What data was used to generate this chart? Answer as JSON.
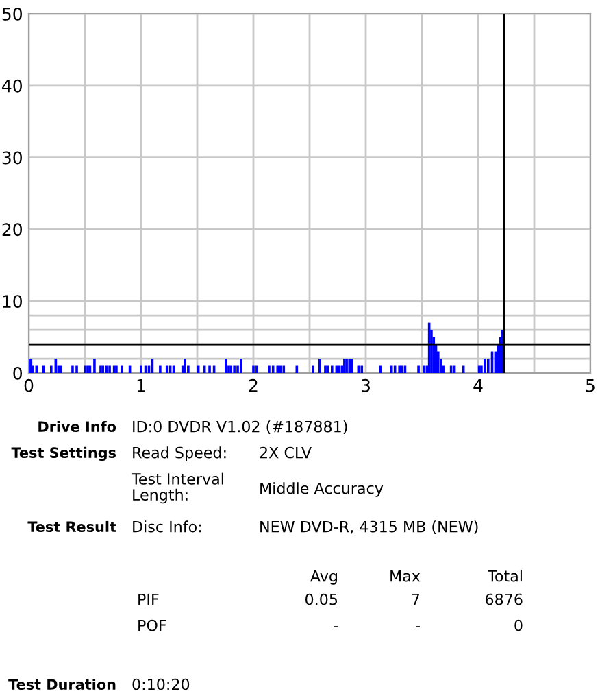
{
  "chart_data": {
    "type": "bar",
    "x": [
      0.0,
      0.02,
      0.037,
      0.069,
      0.13,
      0.2,
      0.24,
      0.264,
      0.285,
      0.39,
      0.427,
      0.504,
      0.525,
      0.545,
      0.585,
      0.64,
      0.66,
      0.69,
      0.72,
      0.76,
      0.78,
      0.83,
      0.9,
      1.0,
      1.04,
      1.07,
      1.1,
      1.17,
      1.23,
      1.26,
      1.29,
      1.37,
      1.39,
      1.42,
      1.51,
      1.565,
      1.61,
      1.65,
      1.755,
      1.78,
      1.8,
      1.83,
      1.86,
      1.89,
      2.0,
      2.03,
      2.14,
      2.175,
      2.215,
      2.24,
      2.27,
      2.386,
      2.53,
      2.59,
      2.64,
      2.66,
      2.7,
      2.74,
      2.765,
      2.79,
      2.81,
      2.83,
      2.855,
      2.875,
      2.935,
      2.965,
      3.13,
      3.23,
      3.26,
      3.3,
      3.32,
      3.35,
      3.47,
      3.52,
      3.545,
      3.565,
      3.585,
      3.605,
      3.625,
      3.645,
      3.67,
      3.69,
      3.76,
      3.79,
      3.87,
      4.01,
      4.03,
      4.06,
      4.09,
      4.125,
      4.155,
      4.18,
      4.2,
      4.215
    ],
    "values": [
      2,
      2,
      1,
      1,
      1,
      1,
      2,
      1,
      1,
      1,
      1,
      1,
      1,
      1,
      2,
      1,
      1,
      1,
      1,
      1,
      1,
      1,
      1,
      1,
      1,
      1,
      2,
      1,
      1,
      1,
      1,
      1,
      2,
      1,
      1,
      1,
      1,
      1,
      2,
      1,
      1,
      1,
      1,
      2,
      1,
      1,
      1,
      1,
      1,
      1,
      1,
      1,
      1,
      2,
      1,
      1,
      1,
      1,
      1,
      1,
      2,
      2,
      2,
      2,
      1,
      1,
      1,
      1,
      1,
      1,
      1,
      1,
      1,
      1,
      1,
      7,
      6,
      5,
      4,
      3,
      2,
      1,
      1,
      1,
      1,
      1,
      1,
      2,
      2,
      3,
      3,
      4,
      5,
      6
    ],
    "color": "#0000ff",
    "xlim": [
      0,
      5
    ],
    "ylim": [
      0,
      50
    ],
    "xticks": [
      0,
      {
        "value": 0.5,
        "label": null
      },
      1,
      {
        "value": 1.5,
        "label": null
      },
      2,
      {
        "value": 2.5,
        "label": null
      },
      3,
      {
        "value": 3.5,
        "label": null
      },
      4,
      {
        "value": 4.5,
        "label": null
      },
      5
    ],
    "yticks": [
      0,
      {
        "value": 2,
        "label": null
      },
      {
        "value": 4,
        "label": null
      },
      {
        "value": 6,
        "label": null
      },
      {
        "value": 8,
        "label": null
      },
      10,
      20,
      30,
      40,
      50
    ],
    "grid": true,
    "ref_lines": [
      {
        "axis": "y",
        "value": 4,
        "color": "#000000"
      },
      {
        "axis": "x",
        "value": 4.23,
        "color": "#000000"
      }
    ],
    "annotations": [
      "Drive Info",
      "ID:0 DVDR V1.02 (#187881)",
      "Test Settings",
      "Read Speed:",
      "2X CLV",
      "Test Interval\nLength:",
      "Middle Accuracy",
      "Test Result",
      "Disc Info:",
      "NEW DVD-R, 4315 MB (NEW)",
      "Avg",
      "Max",
      "Total",
      "PIF",
      "0.05",
      "7",
      "6876",
      "POF",
      "-",
      "-",
      "0",
      "Test Duration",
      "0:10:20"
    ]
  }
}
